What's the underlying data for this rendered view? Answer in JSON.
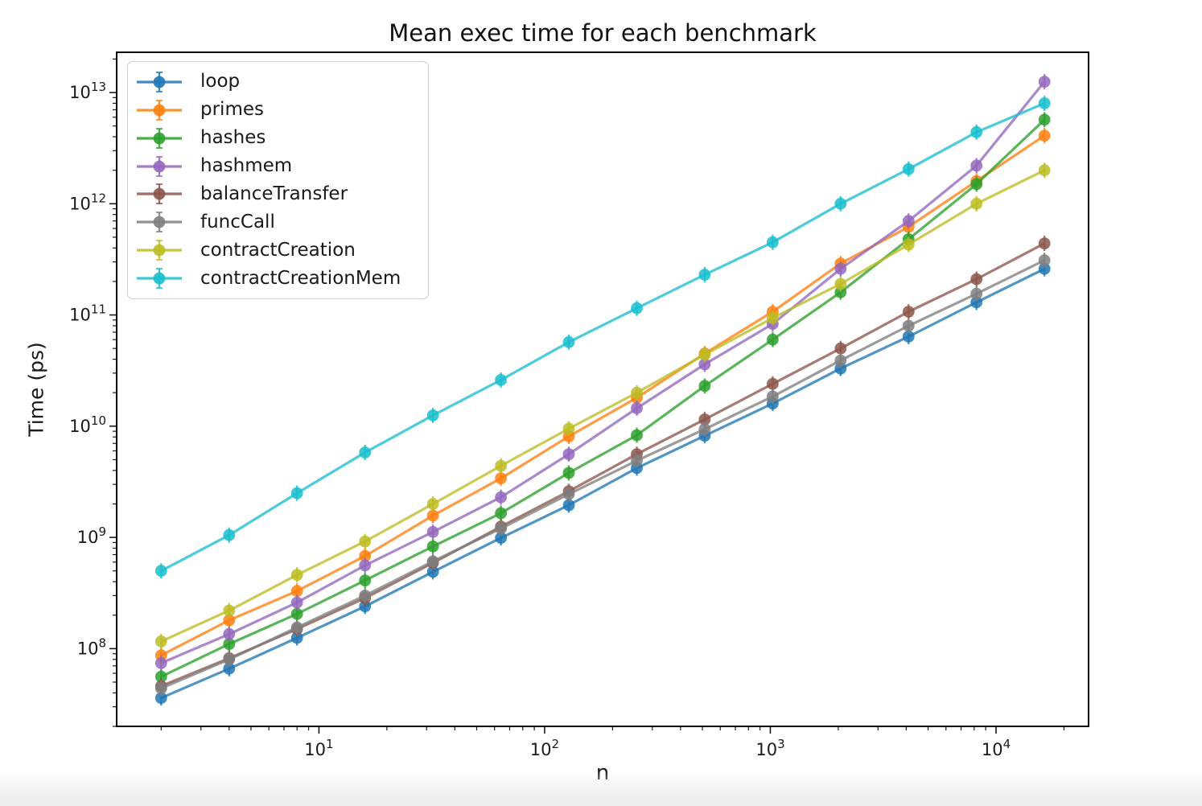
{
  "page": {
    "background_color": "#ffffff",
    "bottom_strip_color": "#ecedf1"
  },
  "chart_data": {
    "type": "line",
    "title": "Mean exec time for each benchmark",
    "xlabel": "n",
    "ylabel": "Time (ps)",
    "x_scale": "log",
    "y_scale": "log",
    "grid": false,
    "legend_position": "upper left",
    "marker_style": "circle with error bars",
    "xlim": [
      1.27,
      25700
    ],
    "ylim": [
      20000000.0,
      23000000000000.0
    ],
    "x_tick_exponents": [
      1,
      2,
      3,
      4
    ],
    "y_tick_exponents": [
      8,
      9,
      10,
      11,
      12,
      13
    ],
    "x": [
      2,
      4,
      8,
      16,
      32,
      64,
      128,
      256,
      512,
      1024,
      2048,
      4096,
      8192,
      16384
    ],
    "series": [
      {
        "name": "loop",
        "color": "#1f77b4",
        "values": [
          36000000.0,
          66000000.0,
          125000000.0,
          240000000.0,
          490000000.0,
          990000000.0,
          1950000000.0,
          4200000000.0,
          8200000000.0,
          16000000000.0,
          33000000000.0,
          64000000000.0,
          130000000000.0,
          260000000000.0
        ]
      },
      {
        "name": "primes",
        "color": "#ff7f0e",
        "values": [
          87000000.0,
          180000000.0,
          330000000.0,
          680000000.0,
          1570000000.0,
          3400000000.0,
          8100000000.0,
          18000000000.0,
          45000000000.0,
          107000000000.0,
          290000000000.0,
          620000000000.0,
          1600000000000.0,
          4100000000000.0
        ]
      },
      {
        "name": "hashes",
        "color": "#2ca02c",
        "values": [
          56000000.0,
          110000000.0,
          205000000.0,
          410000000.0,
          830000000.0,
          1650000000.0,
          3800000000.0,
          8300000000.0,
          23000000000.0,
          60000000000.0,
          160000000000.0,
          480000000000.0,
          1500000000000.0,
          5700000000000.0
        ]
      },
      {
        "name": "hashmem",
        "color": "#9467bd",
        "values": [
          74000000.0,
          135000000.0,
          260000000.0,
          560000000.0,
          1120000000.0,
          2300000000.0,
          5600000000.0,
          14500000000.0,
          36000000000.0,
          83000000000.0,
          260000000000.0,
          700000000000.0,
          2200000000000.0,
          12500000000000.0
        ]
      },
      {
        "name": "balanceTransfer",
        "color": "#8c564b",
        "values": [
          46000000.0,
          82000000.0,
          150000000.0,
          285000000.0,
          590000000.0,
          1250000000.0,
          2600000000.0,
          5600000000.0,
          11500000000.0,
          24000000000.0,
          50000000000.0,
          107000000000.0,
          210000000000.0,
          440000000000.0
        ]
      },
      {
        "name": "funcCall",
        "color": "#7f7f7f",
        "values": [
          44000000.0,
          80000000.0,
          155000000.0,
          300000000.0,
          610000000.0,
          1200000000.0,
          2450000000.0,
          4900000000.0,
          9400000000.0,
          18500000000.0,
          39000000000.0,
          80000000000.0,
          155000000000.0,
          310000000000.0
        ]
      },
      {
        "name": "contractCreation",
        "color": "#bcbd22",
        "values": [
          116000000.0,
          220000000.0,
          460000000.0,
          920000000.0,
          2000000000.0,
          4400000000.0,
          9500000000.0,
          20000000000.0,
          44000000000.0,
          94000000000.0,
          190000000000.0,
          430000000000.0,
          1000000000000.0,
          2000000000000.0
        ]
      },
      {
        "name": "contractCreationMem",
        "color": "#17becf",
        "values": [
          500000000.0,
          1050000000.0,
          2500000000.0,
          5800000000.0,
          12500000000.0,
          26000000000.0,
          57000000000.0,
          115000000000.0,
          230000000000.0,
          450000000000.0,
          1000000000000.0,
          2050000000000.0,
          4400000000000.0,
          8000000000000.0
        ]
      }
    ]
  }
}
